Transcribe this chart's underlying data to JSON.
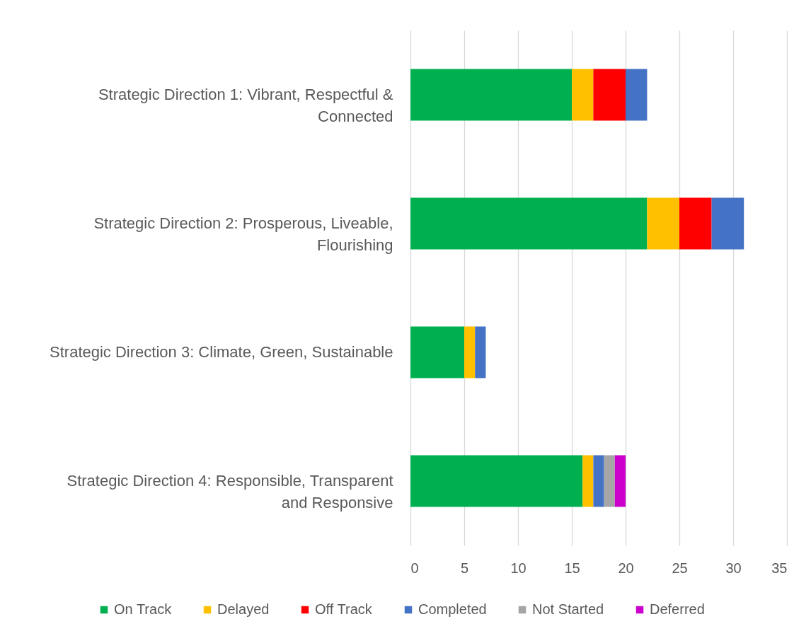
{
  "chart_data": {
    "type": "bar",
    "orientation": "horizontal",
    "stacked": true,
    "categories": [
      "Strategic Direction 1: Vibrant, Respectful & Connected",
      "Strategic Direction 2: Prosperous, Liveable, Flourishing",
      "Strategic Direction 3: Climate, Green, Sustainable",
      "Strategic Direction 4: Responsible, Transparent and Responsive"
    ],
    "series": [
      {
        "name": "On Track",
        "color": "#00b050",
        "values": [
          15,
          22,
          5,
          16
        ]
      },
      {
        "name": "Delayed",
        "color": "#ffc000",
        "values": [
          2,
          3,
          1,
          1
        ]
      },
      {
        "name": "Off Track",
        "color": "#ff0000",
        "values": [
          3,
          3,
          null,
          null
        ]
      },
      {
        "name": "Completed",
        "color": "#4472c4",
        "values": [
          2,
          3,
          1,
          1
        ]
      },
      {
        "name": "Not Started",
        "color": "#a5a5a5",
        "values": [
          null,
          null,
          null,
          1
        ]
      },
      {
        "name": "Deferred",
        "color": "#cc00cc",
        "values": [
          null,
          null,
          null,
          1
        ]
      }
    ],
    "xlim": [
      0,
      35
    ],
    "xticks": [
      0,
      5,
      10,
      15,
      20,
      25,
      30,
      35
    ],
    "grid": "x",
    "legend": "bottom"
  }
}
